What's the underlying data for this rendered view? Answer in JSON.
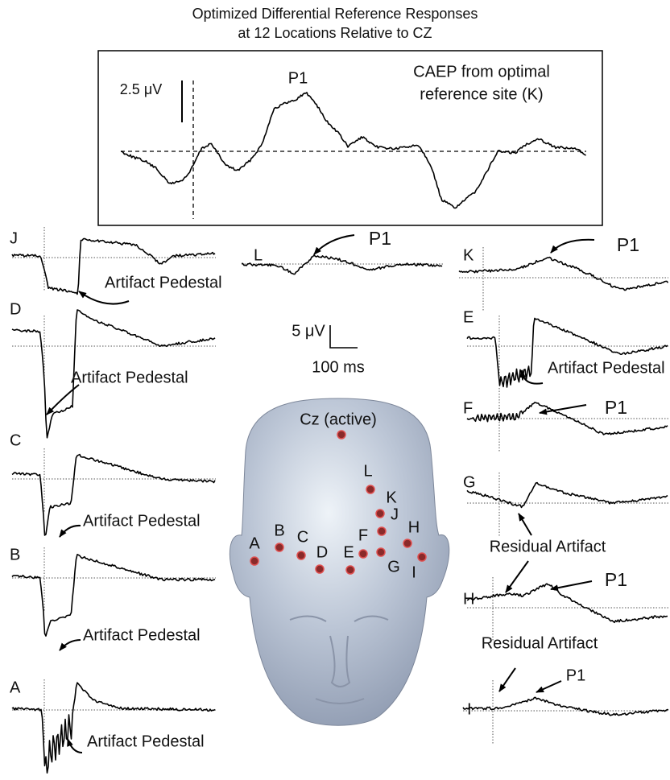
{
  "title": [
    "Optimized Differential Reference Responses",
    "at 12 Locations Relative to CZ"
  ],
  "top_panel": {
    "scale_label": "2.5 μV",
    "peak_label": "P1",
    "caption": [
      "CAEP from optimal",
      "reference site (K)"
    ]
  },
  "scale_bar": {
    "amplitude": "5 μV",
    "time": "100 ms"
  },
  "traces": [
    {
      "label": "J",
      "annotations": [
        "Artifact Pedestal"
      ]
    },
    {
      "label": "D",
      "annotations": [
        "Artifact Pedestal"
      ]
    },
    {
      "label": "C",
      "annotations": [
        "Artifact Pedestal"
      ]
    },
    {
      "label": "B",
      "annotations": [
        "Artifact Pedestal"
      ]
    },
    {
      "label": "A",
      "annotations": [
        "Artifact Pedestal"
      ]
    },
    {
      "label": "L",
      "annotations": [
        "P1"
      ]
    },
    {
      "label": "K",
      "annotations": [
        "P1"
      ]
    },
    {
      "label": "E",
      "annotations": [
        "Artifact Pedestal"
      ]
    },
    {
      "label": "F",
      "annotations": [
        "P1"
      ]
    },
    {
      "label": "G",
      "annotations": [
        "Residual Artifact"
      ]
    },
    {
      "label": "H",
      "annotations": [
        "P1"
      ]
    },
    {
      "label": "I",
      "annotations": [
        "Residual Artifact",
        "P1"
      ]
    }
  ],
  "head": {
    "active": "Cz (active)",
    "electrodes": [
      "A",
      "B",
      "C",
      "D",
      "E",
      "F",
      "G",
      "H",
      "I",
      "J",
      "K",
      "L"
    ]
  }
}
